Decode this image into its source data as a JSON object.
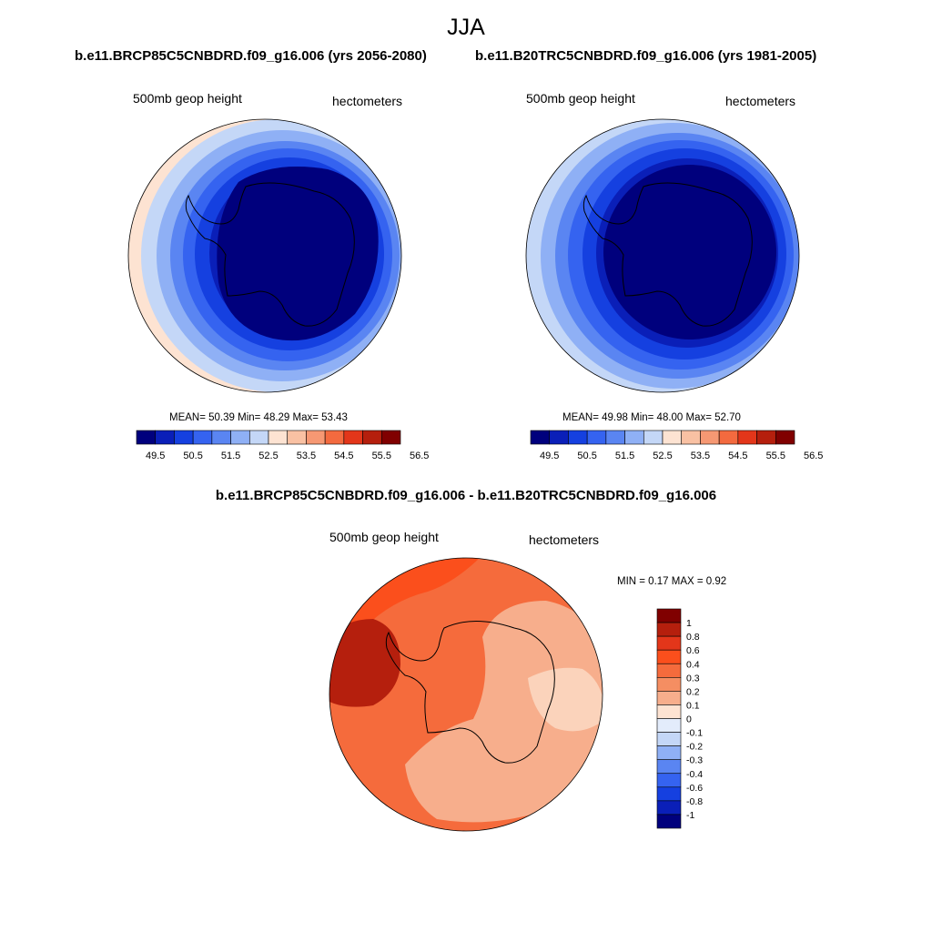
{
  "figure": {
    "season": "JJA",
    "panel_left_title": "b.e11.BRCP85C5CNBDRD.f09_g16.006 (yrs 2056-2080)",
    "panel_right_title": "b.e11.B20TRC5CNBDRD.f09_g16.006 (yrs 1981-2005)",
    "diff_title": "b.e11.BRCP85C5CNBDRD.f09_g16.006 - b.e11.B20TRC5CNBDRD.f09_g16.006"
  },
  "panels": [
    {
      "variable": "500mb geop height",
      "units": "hectometers",
      "stats_text": "MEAN=  50.39  Min=  48.29  Max=  53.43",
      "mean": 50.39,
      "min": 48.29,
      "max": 53.43
    },
    {
      "variable": "500mb geop height",
      "units": "hectometers",
      "stats_text": "MEAN=  49.98  Min=  48.00  Max=  52.70",
      "mean": 49.98,
      "min": 48.0,
      "max": 52.7
    },
    {
      "variable": "500mb geop height",
      "units": "hectometers",
      "stats_text": "MIN =   0.17 MAX =   0.92",
      "min": 0.17,
      "max": 0.92
    }
  ],
  "colorbar_abs": {
    "tick_labels": [
      "49.5",
      "50.5",
      "51.5",
      "52.5",
      "53.5",
      "54.5",
      "55.5",
      "56.5"
    ],
    "colors": [
      "#00007d",
      "#0a1fb8",
      "#1540e0",
      "#3563f0",
      "#5a85f2",
      "#8fb0f5",
      "#c4d7f7",
      "#fde3d2",
      "#f9c1a3",
      "#f69873",
      "#f36a3f",
      "#e3361a",
      "#b51f0d",
      "#800000"
    ]
  },
  "colorbar_diff": {
    "tick_labels": [
      "1",
      "0.8",
      "0.6",
      "0.4",
      "0.3",
      "0.2",
      "0.1",
      "0",
      "-0.1",
      "-0.2",
      "-0.3",
      "-0.4",
      "-0.6",
      "-0.8",
      "-1"
    ],
    "colors": [
      "#800000",
      "#b51f0d",
      "#e3361a",
      "#fb4f1c",
      "#f56b3c",
      "#f58e62",
      "#f7ae8c",
      "#fde3d2",
      "#e3ecfb",
      "#c4d7f7",
      "#8fb0f5",
      "#5a85f2",
      "#3563f0",
      "#1540e0",
      "#0a1fb8",
      "#00007d"
    ]
  }
}
